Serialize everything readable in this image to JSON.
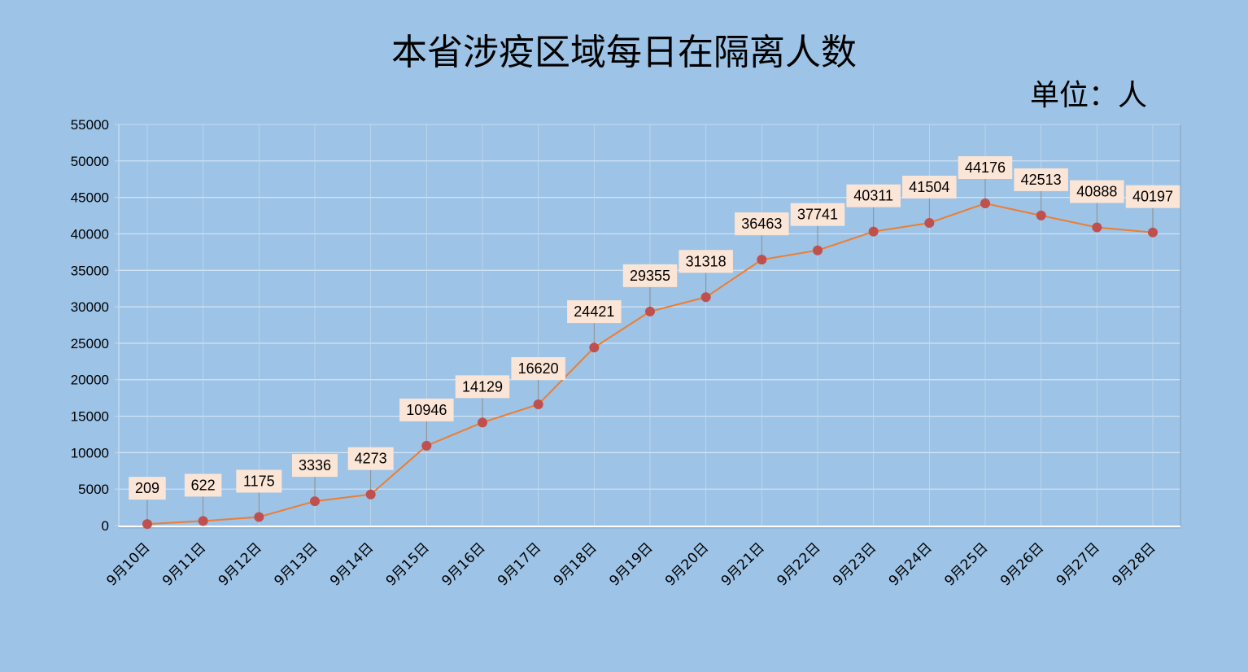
{
  "chart_data": {
    "type": "line",
    "title": "本省涉疫区域每日在隔离人数",
    "unit_label": "单位：人",
    "categories": [
      "9月10日",
      "9月11日",
      "9月12日",
      "9月13日",
      "9月14日",
      "9月15日",
      "9月16日",
      "9月17日",
      "9月18日",
      "9月19日",
      "9月20日",
      "9月21日",
      "9月22日",
      "9月23日",
      "9月24日",
      "9月25日",
      "9月26日",
      "9月27日",
      "9月28日"
    ],
    "values": [
      209,
      622,
      1175,
      3336,
      4273,
      10946,
      14129,
      16620,
      24421,
      29355,
      31318,
      36463,
      37741,
      40311,
      41504,
      44176,
      42513,
      40888,
      40197
    ],
    "ylim": [
      0,
      55000
    ],
    "yticks": [
      0,
      5000,
      10000,
      15000,
      20000,
      25000,
      30000,
      35000,
      40000,
      45000,
      50000,
      55000
    ],
    "grid": true,
    "legend": "none",
    "colors": {
      "background": "#9dc3e6",
      "line": "#ed7d31",
      "marker": "#c0504d",
      "label_box": "#fbe5d6",
      "gridline": "#d6e6f4"
    }
  }
}
